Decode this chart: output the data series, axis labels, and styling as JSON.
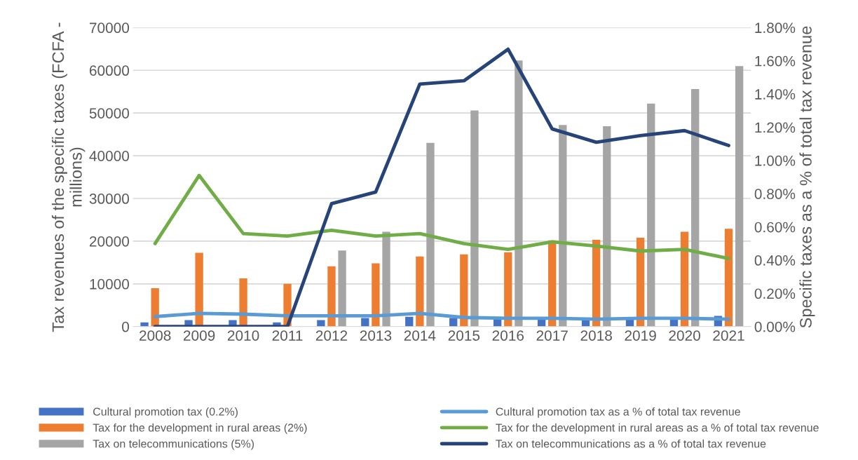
{
  "chart_data": {
    "type": "bar",
    "ylabel": "Tax revenues of the specific taxes (FCFA - millions)",
    "y2label": "Specific taxes as a % of total tax revenue",
    "categories": [
      "2008",
      "2009",
      "2010",
      "2011",
      "2012",
      "2013",
      "2014",
      "2015",
      "2016",
      "2017",
      "2018",
      "2019",
      "2020",
      "2021"
    ],
    "series": [
      {
        "name": "Cultural promotion tax (0.2%)",
        "color": "#4472c4",
        "values": [
          1000,
          1500,
          1500,
          1000,
          1500,
          2000,
          2300,
          2000,
          2000,
          2000,
          1800,
          2000,
          2000,
          2500
        ]
      },
      {
        "name": "Tax for the development in rural areas (2%)",
        "color": "#ed7d31",
        "values": [
          9000,
          17300,
          11300,
          10000,
          14100,
          14800,
          16400,
          16900,
          17400,
          20200,
          20300,
          20800,
          22200,
          22900
        ]
      },
      {
        "name": "Tax on telecommunications (5%)",
        "color": "#a5a5a5",
        "values": [
          0,
          0,
          0,
          0,
          17800,
          22200,
          43000,
          50600,
          62300,
          47200,
          46900,
          52200,
          55600,
          61000
        ]
      },
      {
        "name": "Cultural promotion tax as a % of total tax revenue",
        "type": "line",
        "axis": "y2",
        "color": "#5b9bd5",
        "values": [
          0.06,
          0.08,
          0.075,
          0.065,
          0.065,
          0.065,
          0.08,
          0.055,
          0.05,
          0.05,
          0.045,
          0.05,
          0.05,
          0.045
        ]
      },
      {
        "name": "Tax for the development in rural areas as a % of total tax revenue",
        "type": "line",
        "axis": "y2",
        "color": "#70ad47",
        "values": [
          0.5,
          0.91,
          0.56,
          0.545,
          0.58,
          0.545,
          0.56,
          0.5,
          0.465,
          0.51,
          0.485,
          0.455,
          0.465,
          0.41
        ]
      },
      {
        "name": "Tax on telecommunications as a % of total tax revenue",
        "type": "line",
        "axis": "y2",
        "color": "#264478",
        "values": [
          0,
          0,
          0,
          0,
          0.74,
          0.81,
          1.46,
          1.48,
          1.67,
          1.19,
          1.11,
          1.15,
          1.18,
          1.09
        ]
      }
    ],
    "ylim": [
      0,
      70000
    ],
    "yticks": [
      0,
      10000,
      20000,
      30000,
      40000,
      50000,
      60000,
      70000
    ],
    "y2lim": [
      0,
      1.8
    ],
    "y2ticks": [
      {
        "value": 0,
        "label": "0.00%"
      },
      {
        "value": 0.2,
        "label": "0.20%"
      },
      {
        "value": 0.4,
        "label": "0.40%"
      },
      {
        "value": 0.6,
        "label": "0.60%"
      },
      {
        "value": 0.8,
        "label": "0.80%"
      },
      {
        "value": 1.0,
        "label": "1.00%"
      },
      {
        "value": 1.2,
        "label": "1.20%"
      },
      {
        "value": 1.4,
        "label": "1.40%"
      },
      {
        "value": 1.6,
        "label": "1.60%"
      },
      {
        "value": 1.8,
        "label": "1.80%"
      }
    ],
    "grid": "y",
    "legend": "bottom",
    "marker": "none",
    "line_style": "solid"
  }
}
